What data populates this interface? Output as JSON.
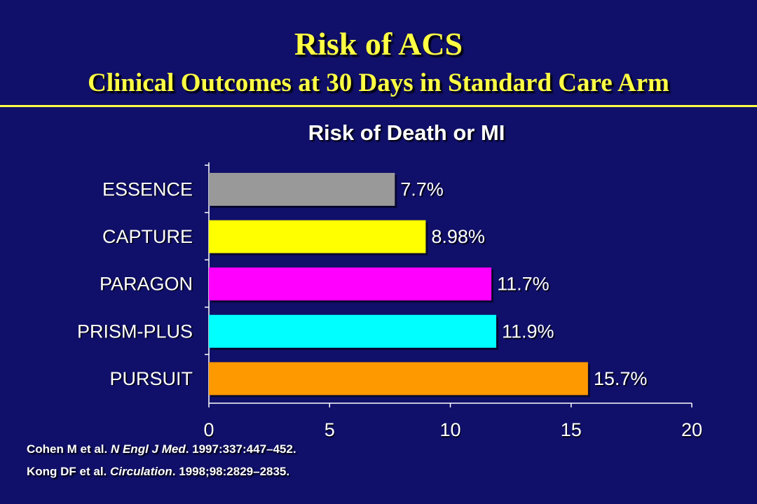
{
  "slide": {
    "title": "Risk of ACS",
    "subtitle": "Clinical Outcomes at 30 Days in Standard Care Arm",
    "background": "#10106a",
    "title_color": "#ffff44"
  },
  "chart_data": {
    "type": "bar",
    "orientation": "horizontal",
    "title": "Risk of Death or MI",
    "categories": [
      "ESSENCE",
      "CAPTURE",
      "PARAGON",
      "PRISM-PLUS",
      "PURSUIT"
    ],
    "values": [
      7.7,
      8.98,
      11.7,
      11.9,
      15.7
    ],
    "data_labels": [
      "7.7%",
      "8.98%",
      "11.7%",
      "11.9%",
      "15.7%"
    ],
    "colors": [
      "#999999",
      "#ffff00",
      "#ff00ff",
      "#00ffff",
      "#ff9900"
    ],
    "xlim": [
      0,
      20
    ],
    "xticks": [
      0,
      5,
      10,
      15,
      20
    ],
    "xlabel": "",
    "ylabel": "",
    "grid": false,
    "legend": "none"
  },
  "references": [
    {
      "pre": "Cohen M et al. ",
      "journal": "N Engl J Med",
      "post": ". 1997:337:447–452."
    },
    {
      "pre": "Kong DF et al. ",
      "journal": "Circulation",
      "post": ". 1998;98:2829–2835."
    }
  ]
}
